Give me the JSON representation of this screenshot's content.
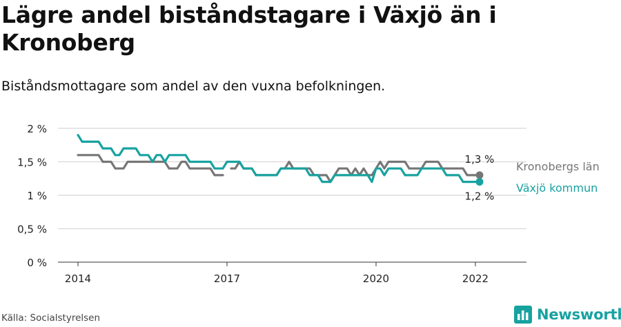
{
  "title": "Lägre andel biståndstagare i Växjö än i Kronoberg",
  "subtitle": "Biståndsmottagare som andel av den vuxna befolkningen.",
  "source": "Källa: Socialstyrelsen",
  "brand": "Newsworthy",
  "colors": {
    "kronoberg": "#767676",
    "vaxjo": "#17a2a0",
    "grid": "#d8d8d8",
    "axis": "#333333"
  },
  "chart_data": {
    "type": "line",
    "xlim": [
      "2014-01",
      "2022-12"
    ],
    "ylim": [
      0,
      2
    ],
    "yticks": [
      0,
      0.5,
      1,
      1.5,
      2
    ],
    "ytick_labels": [
      "0 %",
      "0,5 %",
      "1 %",
      "1,5 %",
      "2 %"
    ],
    "xticks": [
      "2014-01",
      "2017-01",
      "2020-01",
      "2022-01"
    ],
    "xtick_labels": [
      "2014",
      "2017",
      "2020",
      "2022"
    ],
    "grid": true,
    "series": [
      {
        "name": "Kronobergs län",
        "key": "kronoberg",
        "end_label": "1,3 %",
        "values": [
          [
            "2014-01",
            1.6
          ],
          [
            "2014-02",
            1.6
          ],
          [
            "2014-03",
            1.6
          ],
          [
            "2014-04",
            1.6
          ],
          [
            "2014-05",
            1.6
          ],
          [
            "2014-06",
            1.6
          ],
          [
            "2014-07",
            1.5
          ],
          [
            "2014-08",
            1.5
          ],
          [
            "2014-09",
            1.5
          ],
          [
            "2014-10",
            1.4
          ],
          [
            "2014-11",
            1.4
          ],
          [
            "2014-12",
            1.4
          ],
          [
            "2015-01",
            1.5
          ],
          [
            "2015-02",
            1.5
          ],
          [
            "2015-03",
            1.5
          ],
          [
            "2015-04",
            1.5
          ],
          [
            "2015-05",
            1.5
          ],
          [
            "2015-06",
            1.5
          ],
          [
            "2015-07",
            1.5
          ],
          [
            "2015-08",
            1.5
          ],
          [
            "2015-09",
            1.5
          ],
          [
            "2015-10",
            1.5
          ],
          [
            "2015-11",
            1.4
          ],
          [
            "2015-12",
            1.4
          ],
          [
            "2016-01",
            1.4
          ],
          [
            "2016-02",
            1.5
          ],
          [
            "2016-03",
            1.5
          ],
          [
            "2016-04",
            1.4
          ],
          [
            "2016-05",
            1.4
          ],
          [
            "2016-06",
            1.4
          ],
          [
            "2016-07",
            1.4
          ],
          [
            "2016-08",
            1.4
          ],
          [
            "2016-09",
            1.4
          ],
          [
            "2016-10",
            1.3
          ],
          [
            "2016-11",
            1.3
          ],
          [
            "2016-12",
            1.3
          ],
          [
            "2017-01",
            null
          ],
          [
            "2017-02",
            1.4
          ],
          [
            "2017-03",
            1.4
          ],
          [
            "2017-04",
            1.5
          ],
          [
            "2017-05",
            1.4
          ],
          [
            "2017-06",
            1.4
          ],
          [
            "2017-07",
            1.4
          ],
          [
            "2017-08",
            1.3
          ],
          [
            "2017-09",
            1.3
          ],
          [
            "2017-10",
            1.3
          ],
          [
            "2017-11",
            1.3
          ],
          [
            "2017-12",
            1.3
          ],
          [
            "2018-01",
            1.3
          ],
          [
            "2018-02",
            1.4
          ],
          [
            "2018-03",
            1.4
          ],
          [
            "2018-04",
            1.5
          ],
          [
            "2018-05",
            1.4
          ],
          [
            "2018-06",
            1.4
          ],
          [
            "2018-07",
            1.4
          ],
          [
            "2018-08",
            1.4
          ],
          [
            "2018-09",
            1.4
          ],
          [
            "2018-10",
            1.3
          ],
          [
            "2018-11",
            1.3
          ],
          [
            "2018-12",
            1.3
          ],
          [
            "2019-01",
            1.3
          ],
          [
            "2019-02",
            1.2
          ],
          [
            "2019-03",
            1.3
          ],
          [
            "2019-04",
            1.4
          ],
          [
            "2019-05",
            1.4
          ],
          [
            "2019-06",
            1.4
          ],
          [
            "2019-07",
            1.3
          ],
          [
            "2019-08",
            1.4
          ],
          [
            "2019-09",
            1.3
          ],
          [
            "2019-10",
            1.4
          ],
          [
            "2019-11",
            1.3
          ],
          [
            "2019-12",
            1.3
          ],
          [
            "2020-01",
            1.4
          ],
          [
            "2020-02",
            1.5
          ],
          [
            "2020-03",
            1.4
          ],
          [
            "2020-04",
            1.5
          ],
          [
            "2020-05",
            1.5
          ],
          [
            "2020-06",
            1.5
          ],
          [
            "2020-07",
            1.5
          ],
          [
            "2020-08",
            1.5
          ],
          [
            "2020-09",
            1.4
          ],
          [
            "2020-10",
            1.4
          ],
          [
            "2020-11",
            1.4
          ],
          [
            "2020-12",
            1.4
          ],
          [
            "2021-01",
            1.5
          ],
          [
            "2021-02",
            1.5
          ],
          [
            "2021-03",
            1.5
          ],
          [
            "2021-04",
            1.5
          ],
          [
            "2021-05",
            1.4
          ],
          [
            "2021-06",
            1.4
          ],
          [
            "2021-07",
            1.4
          ],
          [
            "2021-08",
            1.4
          ],
          [
            "2021-09",
            1.4
          ],
          [
            "2021-10",
            1.4
          ],
          [
            "2021-11",
            1.3
          ],
          [
            "2021-12",
            1.3
          ],
          [
            "2022-01",
            1.3
          ],
          [
            "2022-02",
            1.3
          ]
        ]
      },
      {
        "name": "Växjö kommun",
        "key": "vaxjo",
        "end_label": "1,2 %",
        "values": [
          [
            "2014-01",
            1.9
          ],
          [
            "2014-02",
            1.8
          ],
          [
            "2014-03",
            1.8
          ],
          [
            "2014-04",
            1.8
          ],
          [
            "2014-05",
            1.8
          ],
          [
            "2014-06",
            1.8
          ],
          [
            "2014-07",
            1.7
          ],
          [
            "2014-08",
            1.7
          ],
          [
            "2014-09",
            1.7
          ],
          [
            "2014-10",
            1.6
          ],
          [
            "2014-11",
            1.6
          ],
          [
            "2014-12",
            1.7
          ],
          [
            "2015-01",
            1.7
          ],
          [
            "2015-02",
            1.7
          ],
          [
            "2015-03",
            1.7
          ],
          [
            "2015-04",
            1.6
          ],
          [
            "2015-05",
            1.6
          ],
          [
            "2015-06",
            1.6
          ],
          [
            "2015-07",
            1.5
          ],
          [
            "2015-08",
            1.6
          ],
          [
            "2015-09",
            1.6
          ],
          [
            "2015-10",
            1.5
          ],
          [
            "2015-11",
            1.6
          ],
          [
            "2015-12",
            1.6
          ],
          [
            "2016-01",
            1.6
          ],
          [
            "2016-02",
            1.6
          ],
          [
            "2016-03",
            1.6
          ],
          [
            "2016-04",
            1.5
          ],
          [
            "2016-05",
            1.5
          ],
          [
            "2016-06",
            1.5
          ],
          [
            "2016-07",
            1.5
          ],
          [
            "2016-08",
            1.5
          ],
          [
            "2016-09",
            1.5
          ],
          [
            "2016-10",
            1.4
          ],
          [
            "2016-11",
            1.4
          ],
          [
            "2016-12",
            1.4
          ],
          [
            "2017-01",
            1.5
          ],
          [
            "2017-02",
            1.5
          ],
          [
            "2017-03",
            1.5
          ],
          [
            "2017-04",
            1.5
          ],
          [
            "2017-05",
            1.4
          ],
          [
            "2017-06",
            1.4
          ],
          [
            "2017-07",
            1.4
          ],
          [
            "2017-08",
            1.3
          ],
          [
            "2017-09",
            1.3
          ],
          [
            "2017-10",
            1.3
          ],
          [
            "2017-11",
            1.3
          ],
          [
            "2017-12",
            1.3
          ],
          [
            "2018-01",
            1.3
          ],
          [
            "2018-02",
            1.4
          ],
          [
            "2018-03",
            1.4
          ],
          [
            "2018-04",
            1.4
          ],
          [
            "2018-05",
            1.4
          ],
          [
            "2018-06",
            1.4
          ],
          [
            "2018-07",
            1.4
          ],
          [
            "2018-08",
            1.4
          ],
          [
            "2018-09",
            1.3
          ],
          [
            "2018-10",
            1.3
          ],
          [
            "2018-11",
            1.3
          ],
          [
            "2018-12",
            1.2
          ],
          [
            "2019-01",
            1.2
          ],
          [
            "2019-02",
            1.2
          ],
          [
            "2019-03",
            1.3
          ],
          [
            "2019-04",
            1.3
          ],
          [
            "2019-05",
            1.3
          ],
          [
            "2019-06",
            1.3
          ],
          [
            "2019-07",
            1.3
          ],
          [
            "2019-08",
            1.3
          ],
          [
            "2019-09",
            1.3
          ],
          [
            "2019-10",
            1.3
          ],
          [
            "2019-11",
            1.3
          ],
          [
            "2019-12",
            1.2
          ],
          [
            "2020-01",
            1.4
          ],
          [
            "2020-02",
            1.4
          ],
          [
            "2020-03",
            1.3
          ],
          [
            "2020-04",
            1.4
          ],
          [
            "2020-05",
            1.4
          ],
          [
            "2020-06",
            1.4
          ],
          [
            "2020-07",
            1.4
          ],
          [
            "2020-08",
            1.3
          ],
          [
            "2020-09",
            1.3
          ],
          [
            "2020-10",
            1.3
          ],
          [
            "2020-11",
            1.3
          ],
          [
            "2020-12",
            1.4
          ],
          [
            "2021-01",
            1.4
          ],
          [
            "2021-02",
            1.4
          ],
          [
            "2021-03",
            1.4
          ],
          [
            "2021-04",
            1.4
          ],
          [
            "2021-05",
            1.4
          ],
          [
            "2021-06",
            1.3
          ],
          [
            "2021-07",
            1.3
          ],
          [
            "2021-08",
            1.3
          ],
          [
            "2021-09",
            1.3
          ],
          [
            "2021-10",
            1.2
          ],
          [
            "2021-11",
            1.2
          ],
          [
            "2021-12",
            1.2
          ],
          [
            "2022-01",
            1.2
          ],
          [
            "2022-02",
            1.2
          ]
        ]
      }
    ]
  }
}
